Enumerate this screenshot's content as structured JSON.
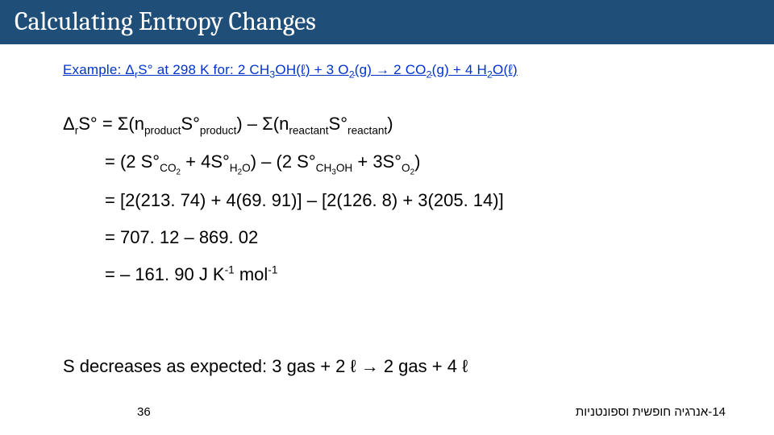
{
  "title": "Calculating Entropy Changes",
  "example_prefix": "Example: Δ",
  "example_r": "r",
  "example_mid": "S° at 298 K for:  2 CH",
  "example_3": "3",
  "example_oh": "OH(ℓ) + 3 O",
  "example_2a": "2",
  "example_gto": "(g) → 2 CO",
  "example_2b": "2",
  "example_gplus": "(g) + 4 H",
  "example_2c": "2",
  "example_end": "O(ℓ)",
  "line1_a": "Δ",
  "line1_r": "r",
  "line1_b": "S° = Σ(n",
  "line1_product": "product",
  "line1_c": "S°",
  "line1_product2": "product",
  "line1_d": ") – Σ(n",
  "line1_reactant": "reactant",
  "line1_e": "S°",
  "line1_reactant2": "reactant",
  "line1_f": ")",
  "line2_a": "= (2 S°",
  "line2_co2": "CO",
  "line2_co2n": "2",
  "line2_b": " + 4S°",
  "line2_h2o": "H",
  "line2_h2on": "2",
  "line2_h2oo": "O",
  "line2_c": ") – (2 S°",
  "line2_ch3oh": "CH",
  "line2_ch3n": "3",
  "line2_ch3ohb": "OH",
  "line2_d": " + 3S°",
  "line2_o2": "O",
  "line2_o2n": "2",
  "line2_e": ")",
  "line3": "= [2(213. 74) + 4(69. 91)] – [2(126. 8) + 3(205. 14)]",
  "line4": "= 707. 12 – 869. 02",
  "line5_a": "= – 161. 90 J K",
  "line5_sup1": "-1",
  "line5_b": " mol",
  "line5_sup2": "-1",
  "bottom": "S decreases as expected: 3 gas + 2 ℓ → 2 gas + 4 ℓ",
  "page": "36",
  "hebrew": "14-אנרגיה חופשית וספונטניות",
  "colors": {
    "title_bg": "#1f4e79",
    "title_fg": "#ffffff",
    "example_fg": "#0033cc",
    "body_fg": "#000000",
    "page_bg": "#ffffff"
  }
}
